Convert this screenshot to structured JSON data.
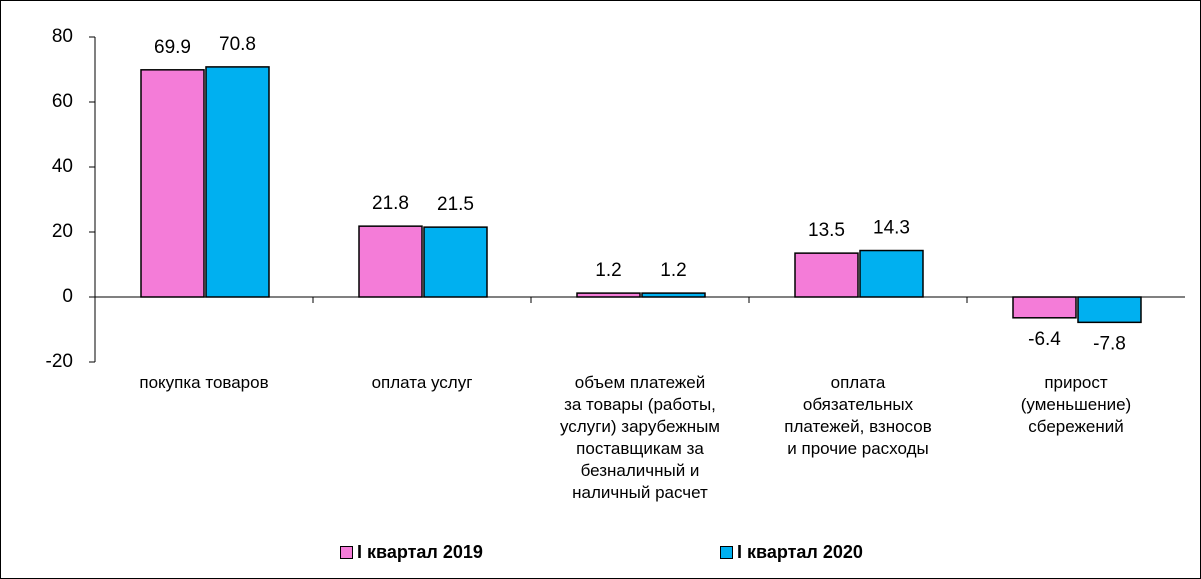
{
  "chart_data": {
    "type": "bar",
    "categories": [
      "покупка товаров",
      "оплата услуг",
      "объем платежей\nза товары (работы,\nуслуги) зарубежным\nпоставщикам за\nбезналичный и\nналичный расчет",
      "оплата\nобязательных\nплатежей, взносов\nи прочие расходы",
      "прирост\n(уменьшение)\nсбережений"
    ],
    "series": [
      {
        "name": "I квартал 2019",
        "color": "#f47cd8",
        "values": [
          69.9,
          21.8,
          1.2,
          13.5,
          -6.4
        ]
      },
      {
        "name": "I квартал 2020",
        "color": "#00b0f0",
        "values": [
          70.8,
          21.5,
          1.2,
          14.3,
          -7.8
        ]
      }
    ],
    "ylim": [
      -20,
      80
    ],
    "yticks": [
      -20,
      0,
      20,
      40,
      60,
      80
    ],
    "grid": false,
    "legend": "bottom"
  }
}
